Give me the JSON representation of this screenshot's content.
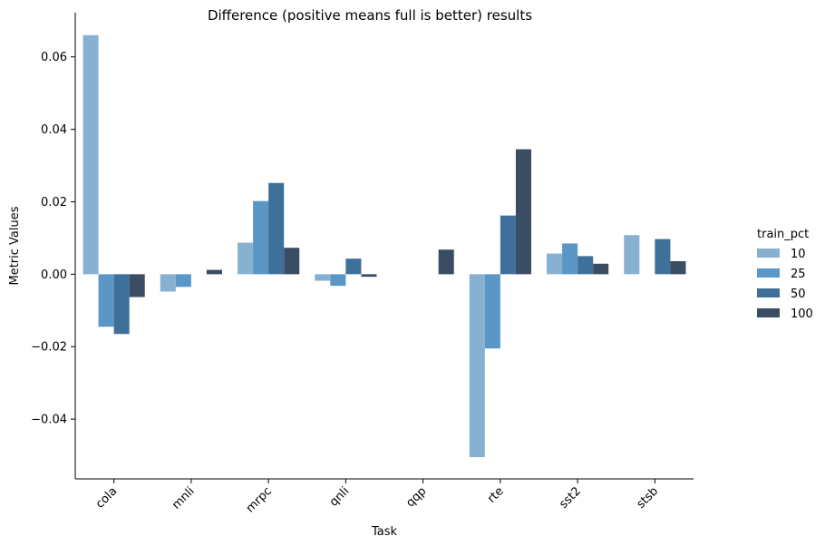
{
  "chart_data": {
    "type": "bar",
    "title": "Difference (positive means full is better) results",
    "xlabel": "Task",
    "ylabel": "Metric Values",
    "categories": [
      "cola",
      "mnli",
      "mrpc",
      "qnli",
      "qqp",
      "rte",
      "sst2",
      "stsb"
    ],
    "series": [
      {
        "name": "10",
        "color": "#88b0d1",
        "values": [
          0.066,
          -0.0048,
          0.0087,
          -0.0018,
          0.0,
          -0.0505,
          0.0057,
          0.0108
        ]
      },
      {
        "name": "25",
        "color": "#5a97c7",
        "values": [
          -0.0145,
          -0.0035,
          0.0202,
          -0.0032,
          0.0,
          -0.0205,
          0.0085,
          0.0
        ]
      },
      {
        "name": "50",
        "color": "#3e709a",
        "values": [
          -0.0165,
          0.0,
          0.0252,
          0.0043,
          0.0,
          0.0162,
          0.005,
          0.0097
        ]
      },
      {
        "name": "100",
        "color": "#3a4d63",
        "values": [
          -0.0063,
          0.0012,
          0.0073,
          -0.0007,
          0.0068,
          0.0345,
          0.0029,
          0.0036
        ]
      }
    ],
    "ylim": [
      -0.0565,
      0.0722
    ],
    "yticks": [
      -0.04,
      -0.02,
      0.0,
      0.02,
      0.04,
      0.06
    ],
    "ytick_labels": [
      "−0.04",
      "−0.02",
      "0.00",
      "0.02",
      "0.04",
      "0.06"
    ],
    "grid": false,
    "legend": {
      "title": "train_pct",
      "placement": "right",
      "labels": [
        "10",
        "25",
        "50",
        "100"
      ]
    }
  }
}
